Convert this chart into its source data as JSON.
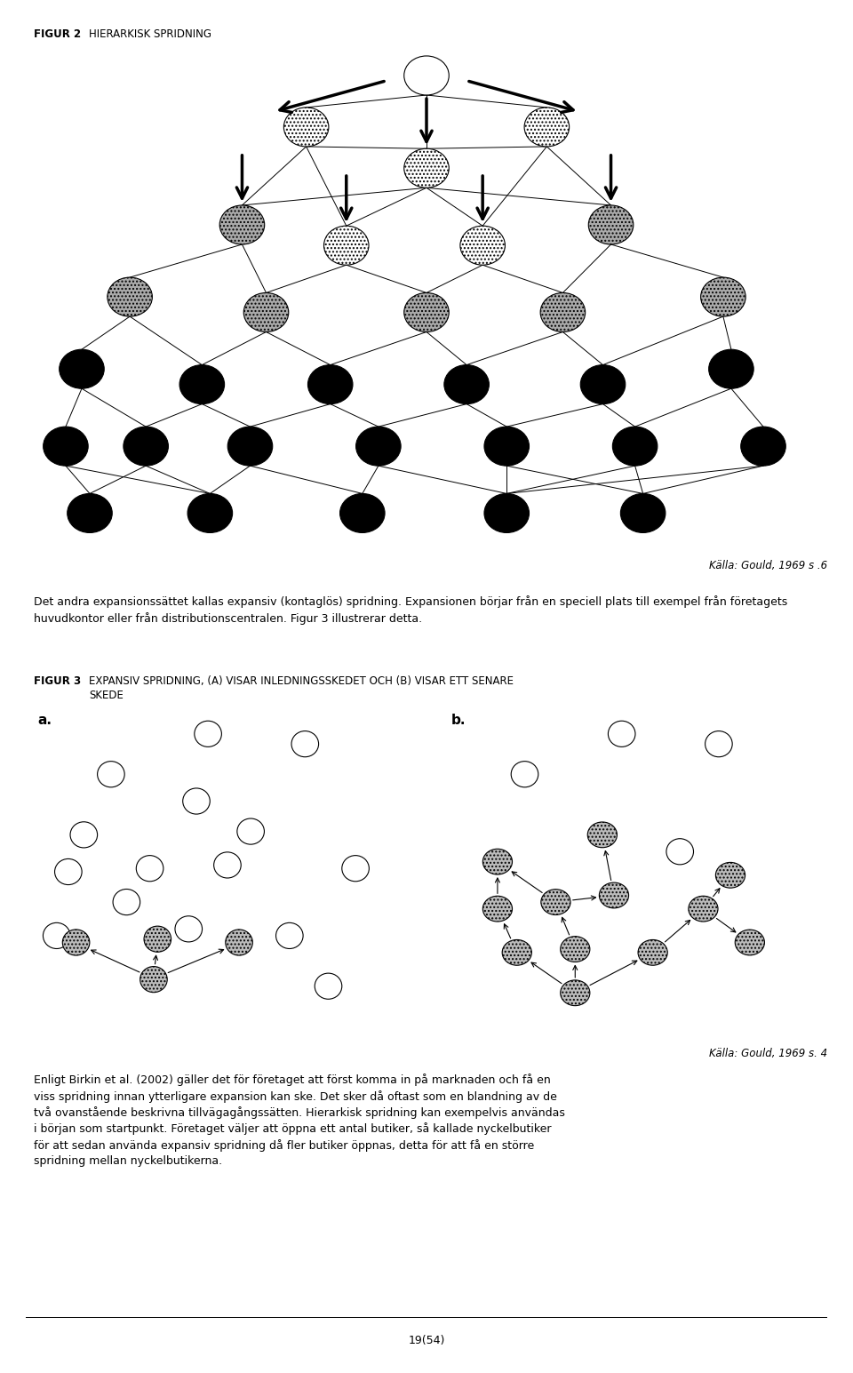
{
  "fig2_title": "FIGUR 2 HIERARKISK SPRIDNING",
  "fig3_label": "FIGUR 3",
  "fig3_subtitle": " EXPANSIV SPRIDNING, (A) VISAR INLEDNINGSSKEDET OCH (B) VISAR ETT SENARE SKEDE",
  "source1": "Källa: Gould, 1969 s .6",
  "source2": "Källa: Gould, 1969 s. 4",
  "para1": "Det andra expansionssättet kallas expansiv (kontaglös) spridning. Expansionen börjar från en speciell plats till exempel från företagets huvudkontor eller från distributionscentralen. Figur 3 illustrerar detta.",
  "para2_line1": "Enligt Birkin et al. (2002) gäller det för företaget att först komma in på marknaden och få en",
  "para2_line2": "viss spridning innan ytterligare expansion kan ske. Det sker då oftast som en blandning av de",
  "para2_line3": "två ovanstående beskrivna tillvägagångssätten. Hierarkisk spridning kan exempelvis användas",
  "para2_line4": "i början som startpunkt. Företaget väljer att öppna ett antal butiker, så kallade nyckelbutiker",
  "para2_line5": "för att sedan använda expansiv spridning då fler butiker öppnas, detta för att få en större",
  "para2_line6": "spridning mellan nyckelbutikerna.",
  "page": "19(54)",
  "bg_color": "#ffffff"
}
